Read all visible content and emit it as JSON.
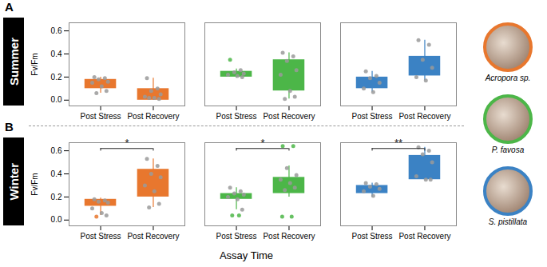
{
  "chart_data": {
    "type": "box",
    "x_label": "Assay Time",
    "y_label": "Fv/Fm",
    "categories": [
      "Post Stress",
      "Post Recovery"
    ],
    "ylim": [
      -0.05,
      0.67
    ],
    "yticks": [
      {
        "value": 0,
        "label": "0.0"
      },
      {
        "value": 0.2,
        "label": "0.2"
      },
      {
        "value": 0.4,
        "label": "0.4"
      },
      {
        "value": 0.6,
        "label": "0.6"
      }
    ],
    "series": [
      {
        "name": "Acropora sp.",
        "color": "#e8772e"
      },
      {
        "name": "P. favosa",
        "color": "#4cb648"
      },
      {
        "name": "S. pistillata",
        "color": "#3b82c4"
      }
    ],
    "panels": [
      {
        "panel": "A",
        "season": "Summer",
        "groups": [
          {
            "series": "Acropora sp.",
            "boxes": [
              {
                "whisker_low": 0.06,
                "q1": 0.1,
                "q3": 0.18,
                "whisker_high": 0.2,
                "points": [
                  0.2,
                  0.19,
                  0.18,
                  0.16,
                  0.15,
                  0.12,
                  0.08,
                  0.06
                ]
              },
              {
                "whisker_low": 0.0,
                "q1": 0.0,
                "q3": 0.1,
                "whisker_high": 0.19,
                "points": [
                  0.19,
                  0.1,
                  0.08,
                  0.05,
                  0.03,
                  0.02,
                  0.01,
                  0.02
                ]
              }
            ]
          },
          {
            "series": "P. favosa",
            "boxes": [
              {
                "whisker_low": 0.19,
                "q1": 0.2,
                "q3": 0.25,
                "whisker_high": 0.27,
                "points": [
                  0.35,
                  0.26,
                  0.24,
                  0.23,
                  0.22,
                  0.21,
                  0.2
                ]
              },
              {
                "whisker_low": 0.01,
                "q1": 0.08,
                "q3": 0.35,
                "whisker_high": 0.41,
                "points": [
                  0.41,
                  0.38,
                  0.34,
                  0.26,
                  0.22,
                  0.08,
                  0.03,
                  0.01
                ]
              }
            ]
          },
          {
            "series": "S. pistillata",
            "boxes": [
              {
                "whisker_low": 0.07,
                "q1": 0.1,
                "q3": 0.2,
                "whisker_high": 0.25,
                "points": [
                  0.25,
                  0.21,
                  0.19,
                  0.15,
                  0.1,
                  0.07
                ]
              },
              {
                "whisker_low": 0.17,
                "q1": 0.21,
                "q3": 0.38,
                "whisker_high": 0.52,
                "points": [
                  0.52,
                  0.48,
                  0.35,
                  0.28,
                  0.2,
                  0.17
                ]
              }
            ]
          }
        ]
      },
      {
        "panel": "B",
        "season": "Winter",
        "groups": [
          {
            "series": "Acropora sp.",
            "significance": "*",
            "boxes": [
              {
                "whisker_low": 0.04,
                "q1": 0.12,
                "q3": 0.18,
                "whisker_high": 0.19,
                "points": [
                  0.18,
                  0.17,
                  0.16,
                  0.15,
                  0.1,
                  0.06,
                  0.04,
                  0.03
                ]
              },
              {
                "whisker_low": 0.11,
                "q1": 0.2,
                "q3": 0.44,
                "whisker_high": 0.53,
                "points": [
                  0.53,
                  0.47,
                  0.4,
                  0.37,
                  0.3,
                  0.25,
                  0.14,
                  0.11
                ]
              }
            ]
          },
          {
            "series": "P. favosa",
            "significance": "*",
            "boxes": [
              {
                "whisker_low": 0.09,
                "q1": 0.18,
                "q3": 0.23,
                "whisker_high": 0.28,
                "points": [
                  0.28,
                  0.25,
                  0.23,
                  0.22,
                  0.2,
                  0.18,
                  0.09,
                  0.04,
                  0.04
                ]
              },
              {
                "whisker_low": 0.2,
                "q1": 0.23,
                "q3": 0.37,
                "whisker_high": 0.47,
                "points": [
                  0.64,
                  0.64,
                  0.45,
                  0.39,
                  0.35,
                  0.32,
                  0.28,
                  0.26,
                  0.03,
                  0.03
                ]
              }
            ]
          },
          {
            "series": "S. pistillata",
            "significance": "**",
            "boxes": [
              {
                "whisker_low": 0.2,
                "q1": 0.23,
                "q3": 0.3,
                "whisker_high": 0.32,
                "points": [
                  0.32,
                  0.31,
                  0.29,
                  0.27,
                  0.25,
                  0.21
                ]
              },
              {
                "whisker_low": 0.35,
                "q1": 0.35,
                "q3": 0.56,
                "whisker_high": 0.63,
                "points": [
                  0.63,
                  0.6,
                  0.57,
                  0.5,
                  0.38,
                  0.35,
                  0.35
                ]
              }
            ]
          }
        ]
      }
    ]
  }
}
